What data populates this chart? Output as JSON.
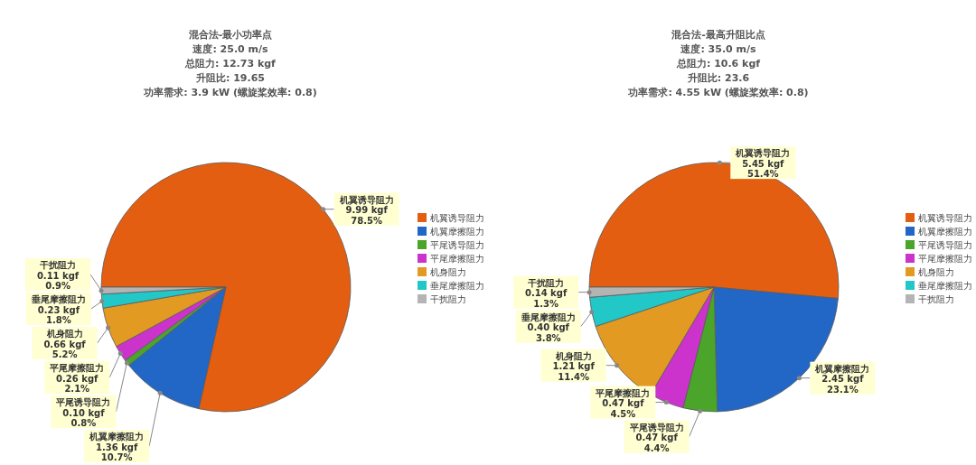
{
  "chart_data": [
    {
      "type": "pie",
      "title": "混合法-最小功率点",
      "subtitle": "速度: 25.0 m/s\n总阻力: 12.73 kgf\n升阻比: 19.65\n功率需求: 3.9 kW (螺旋桨效率: 0.8)",
      "legend": "right",
      "categories": [
        "机翼诱导阻力",
        "机翼摩擦阻力",
        "平尾诱导阻力",
        "平尾摩擦阻力",
        "机身阻力",
        "垂尾摩擦阻力",
        "干扰阻力"
      ],
      "values": [
        78.5,
        10.7,
        0.8,
        2.1,
        5.2,
        1.8,
        0.9
      ],
      "value_labels": [
        "9.99 kgf\n78.5%",
        "1.36 kgf\n10.7%",
        "0.10 kgf\n0.8%",
        "0.26 kgf\n2.1%",
        "0.66 kgf\n5.2%",
        "0.23 kgf\n1.8%",
        "0.11 kgf\n0.9%"
      ],
      "colors": [
        "#e35e10",
        "#2266c6",
        "#4aa52a",
        "#cc33cc",
        "#e39a22",
        "#22c8c8",
        "#b4b4b4"
      ]
    },
    {
      "type": "pie",
      "title": "混合法-最高升阻比点",
      "subtitle": "速度: 35.0 m/s\n总阻力: 10.6 kgf\n升阻比: 23.6\n功率需求: 4.55 kW (螺旋桨效率: 0.8)",
      "legend": "right",
      "categories": [
        "机翼诱导阻力",
        "机翼摩擦阻力",
        "平尾诱导阻力",
        "平尾摩擦阻力",
        "机身阻力",
        "垂尾摩擦阻力",
        "干扰阻力"
      ],
      "values": [
        51.4,
        23.1,
        4.4,
        4.5,
        11.4,
        3.8,
        1.3
      ],
      "value_labels": [
        "5.45 kgf\n51.4%",
        "2.45 kgf\n23.1%",
        "0.47 kgf\n4.4%",
        "0.47 kgf\n4.5%",
        "1.21 kgf\n11.4%",
        "0.40 kgf\n3.8%",
        "0.14 kgf\n1.3%"
      ],
      "colors": [
        "#e35e10",
        "#2266c6",
        "#4aa52a",
        "#cc33cc",
        "#e39a22",
        "#22c8c8",
        "#b4b4b4"
      ]
    }
  ]
}
